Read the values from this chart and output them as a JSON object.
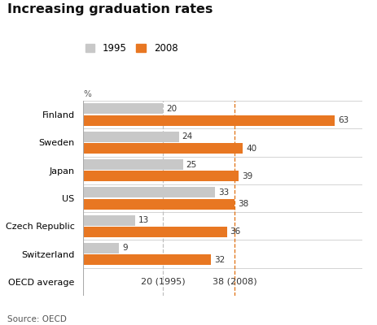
{
  "title": "Increasing graduation rates",
  "source": "Source: OECD",
  "ylabel_pct": "%",
  "legend": [
    "1995",
    "2008"
  ],
  "legend_colors": [
    "#c8c8c8",
    "#e87722"
  ],
  "categories": [
    "Finland",
    "Sweden",
    "Japan",
    "US",
    "Czech Republic",
    "Switzerland",
    "OECD average"
  ],
  "values_1995": [
    20,
    24,
    25,
    33,
    13,
    9,
    null
  ],
  "values_2008": [
    63,
    40,
    39,
    38,
    36,
    32,
    null
  ],
  "bar_color_1995": "#c8c8c8",
  "bar_color_2008": "#e87722",
  "vline_1995": 20,
  "vline_2008": 38,
  "vline_color_1995": "#c0c0c0",
  "vline_color_2008": "#e07010",
  "xlim": [
    0,
    70
  ],
  "bar_height": 0.38,
  "bg_color": "#ffffff",
  "oecd_label_1995": "20 (1995)",
  "oecd_label_2008": "38 (2008)"
}
